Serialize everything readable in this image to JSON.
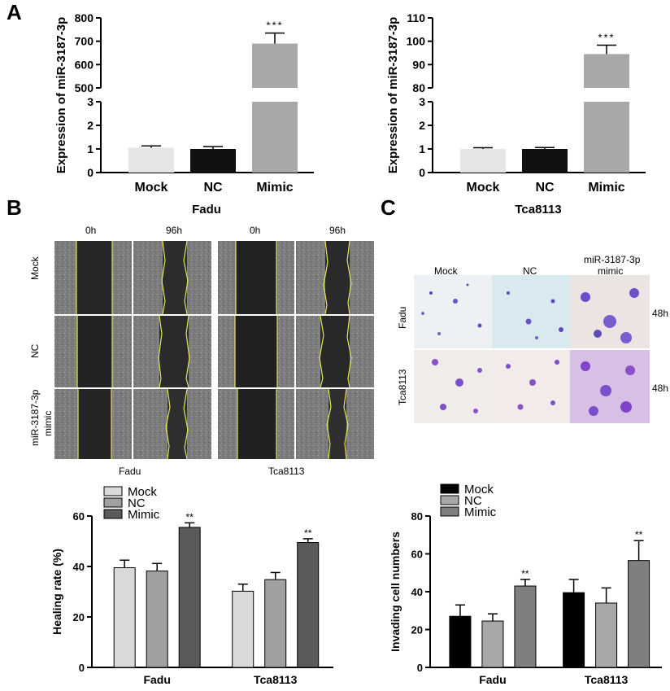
{
  "panels": {
    "a": "A",
    "b": "B",
    "c": "C"
  },
  "colors": {
    "mock_light": "#e6e6e6",
    "nc_black": "#111111",
    "mimic_gray": "#a8a8a8",
    "bar_light": "#d9d9d9",
    "bar_mid": "#a0a0a0",
    "bar_dark": "#5a5a5a",
    "boundary_yellow": "#e7e35a",
    "stain_purple": "#7a4fc9"
  },
  "migration": {
    "time_labels": [
      "0h",
      "96h",
      "0h",
      "96h"
    ],
    "row_labels": [
      "Mock",
      "NC",
      "miR-3187-3p",
      "mimic"
    ],
    "group_labels": [
      "Fadu",
      "Tca8113"
    ]
  },
  "transwell": {
    "column_labels": [
      "Mock",
      "NC",
      "miR-3187-3p",
      "mimic"
    ],
    "row_labels": [
      "Fadu",
      "Tca8113"
    ],
    "time_labels": [
      "48h",
      "48h"
    ]
  },
  "chart_data": [
    {
      "type": "bar",
      "ylabel": "Expression of miR-3187-3p",
      "xlabel": "Fadu",
      "categories": [
        "Mock",
        "NC",
        "Mimic"
      ],
      "values": [
        1.05,
        1.0,
        690
      ],
      "errors": [
        0.08,
        0.1,
        45
      ],
      "axis_break": {
        "lower": [
          0,
          3
        ],
        "upper": [
          500,
          800
        ]
      },
      "lower_ticks": [
        "0",
        "1",
        "2",
        "3"
      ],
      "upper_ticks": [
        "500",
        "600",
        "700",
        "800"
      ],
      "significance": [
        "",
        "",
        "***"
      ]
    },
    {
      "type": "bar",
      "ylabel": "Expression of miR-3187-3p",
      "xlabel": "Tca8113",
      "categories": [
        "Mock",
        "NC",
        "Mimic"
      ],
      "values": [
        1.0,
        1.0,
        94.5
      ],
      "errors": [
        0.05,
        0.06,
        3.8
      ],
      "axis_break": {
        "lower": [
          0,
          3
        ],
        "upper": [
          80,
          110
        ]
      },
      "lower_ticks": [
        "0",
        "1",
        "2",
        "3"
      ],
      "upper_ticks": [
        "80",
        "90",
        "100",
        "110"
      ],
      "significance": [
        "",
        "",
        "***"
      ]
    },
    {
      "type": "bar",
      "ylabel": "Healing rate (%)",
      "categories": [
        "Fadu",
        "Tca8113"
      ],
      "legend": [
        "Mock",
        "NC",
        "Mimic"
      ],
      "series": [
        {
          "name": "Mock",
          "values": [
            39.5,
            30.2
          ],
          "errors": [
            3.0,
            2.8
          ]
        },
        {
          "name": "NC",
          "values": [
            38.2,
            34.8
          ],
          "errors": [
            3.0,
            2.8
          ]
        },
        {
          "name": "Mimic",
          "values": [
            55.5,
            49.5
          ],
          "errors": [
            1.8,
            1.5
          ]
        }
      ],
      "ylim": [
        0,
        60
      ],
      "yticks": [
        "0",
        "20",
        "40",
        "60"
      ],
      "significance": [
        "**",
        "**"
      ]
    },
    {
      "type": "bar",
      "ylabel": "Invading cell numbers",
      "categories": [
        "Fadu",
        "Tca8113"
      ],
      "legend": [
        "Mock",
        "NC",
        "Mimic"
      ],
      "series": [
        {
          "name": "Mock",
          "values": [
            27,
            39.5
          ],
          "errors": [
            6,
            7
          ]
        },
        {
          "name": "NC",
          "values": [
            24.5,
            34
          ],
          "errors": [
            3.8,
            8
          ]
        },
        {
          "name": "Mimic",
          "values": [
            43,
            56.5
          ],
          "errors": [
            3.5,
            10.5
          ]
        }
      ],
      "ylim": [
        0,
        80
      ],
      "yticks": [
        "0",
        "20",
        "40",
        "60",
        "80"
      ],
      "significance": [
        "**",
        "**"
      ]
    }
  ]
}
